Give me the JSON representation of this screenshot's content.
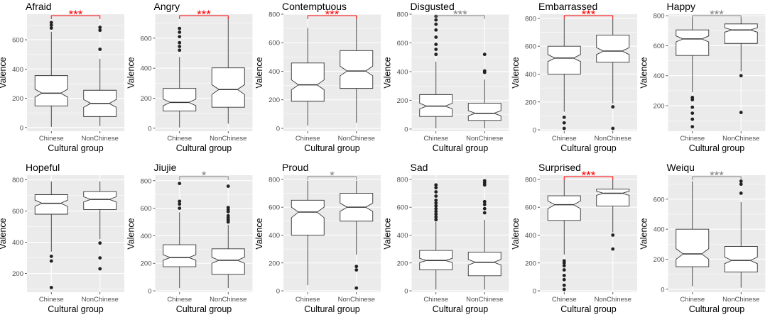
{
  "chart_data": [
    {
      "type": "boxplot",
      "title": "Afraid",
      "xlabel": "Cultural group",
      "ylabel": "Valence",
      "categories": [
        "Chinese",
        "NonChinese"
      ],
      "yticks": [
        0,
        200,
        400,
        600
      ],
      "ylim": [
        -25,
        775
      ],
      "significance": {
        "label": "***",
        "color": "#ff0000"
      },
      "boxes": [
        {
          "group": "Chinese",
          "whisker_low": 5,
          "q1": 148,
          "median": 235,
          "q3": 355,
          "whisker_high": 655,
          "notch_low": 208,
          "notch_high": 262,
          "outliers": [
            680,
            700,
            718
          ]
        },
        {
          "group": "NonChinese",
          "whisker_low": 10,
          "q1": 75,
          "median": 165,
          "q3": 255,
          "whisker_high": 470,
          "notch_low": 138,
          "notch_high": 192,
          "outliers": [
            535,
            665,
            685
          ]
        }
      ]
    },
    {
      "type": "boxplot",
      "title": "Angry",
      "xlabel": "Cultural group",
      "ylabel": "Valence",
      "categories": [
        "Chinese",
        "NonChinese"
      ],
      "yticks": [
        0,
        200,
        400,
        600
      ],
      "ylim": [
        -20,
        760
      ],
      "significance": {
        "label": "***",
        "color": "#ff0000"
      },
      "boxes": [
        {
          "group": "Chinese",
          "whisker_low": 5,
          "q1": 115,
          "median": 172,
          "q3": 265,
          "whisker_high": 475,
          "notch_low": 150,
          "notch_high": 194,
          "outliers": [
            520,
            545,
            570,
            610,
            640,
            665
          ]
        },
        {
          "group": "NonChinese",
          "whisker_low": 30,
          "q1": 140,
          "median": 258,
          "q3": 402,
          "whisker_high": 740,
          "notch_low": 225,
          "notch_high": 290,
          "outliers": []
        }
      ]
    },
    {
      "type": "boxplot",
      "title": "Contemptuous",
      "xlabel": "Cultural group",
      "ylabel": "Valence",
      "categories": [
        "Chinese",
        "NonChinese"
      ],
      "yticks": [
        0,
        200,
        400,
        600,
        800
      ],
      "ylim": [
        -20,
        800
      ],
      "significance": {
        "label": "***",
        "color": "#ff0000"
      },
      "boxes": [
        {
          "group": "Chinese",
          "whisker_low": 20,
          "q1": 190,
          "median": 305,
          "q3": 458,
          "whisker_high": 705,
          "notch_low": 270,
          "notch_high": 340,
          "outliers": []
        },
        {
          "group": "NonChinese",
          "whisker_low": 40,
          "q1": 280,
          "median": 402,
          "q3": 545,
          "whisker_high": 790,
          "notch_low": 368,
          "notch_high": 436,
          "outliers": []
        }
      ]
    },
    {
      "type": "boxplot",
      "title": "Disgusted",
      "xlabel": "Cultural group",
      "ylabel": "Valence",
      "categories": [
        "Chinese",
        "NonChinese"
      ],
      "yticks": [
        0,
        200,
        400,
        600,
        800
      ],
      "ylim": [
        -15,
        800
      ],
      "significance": {
        "label": "***",
        "color": "#808080"
      },
      "boxes": [
        {
          "group": "Chinese",
          "whisker_low": 5,
          "q1": 88,
          "median": 160,
          "q3": 240,
          "whisker_high": 470,
          "notch_low": 140,
          "notch_high": 180,
          "outliers": [
            520,
            555,
            590,
            640,
            690,
            730,
            760,
            785
          ]
        },
        {
          "group": "NonChinese",
          "whisker_low": 5,
          "q1": 60,
          "median": 110,
          "q3": 180,
          "whisker_high": 345,
          "notch_low": 92,
          "notch_high": 128,
          "outliers": [
            395,
            405,
            520
          ]
        }
      ]
    },
    {
      "type": "boxplot",
      "title": "Embarrassed",
      "xlabel": "Cultural group",
      "ylabel": "Valence",
      "categories": [
        "Chinese",
        "NonChinese"
      ],
      "yticks": [
        0,
        200,
        400,
        600,
        800
      ],
      "ylim": [
        -10,
        830
      ],
      "significance": {
        "label": "***",
        "color": "#ff0000"
      },
      "boxes": [
        {
          "group": "Chinese",
          "whisker_low": 130,
          "q1": 400,
          "median": 515,
          "q3": 600,
          "whisker_high": 800,
          "notch_low": 490,
          "notch_high": 540,
          "outliers": [
            10,
            50,
            90
          ]
        },
        {
          "group": "NonChinese",
          "whisker_low": 190,
          "q1": 485,
          "median": 565,
          "q3": 680,
          "whisker_high": 800,
          "notch_low": 540,
          "notch_high": 590,
          "outliers": [
            10,
            165
          ]
        }
      ]
    },
    {
      "type": "boxplot",
      "title": "Happy",
      "xlabel": "Cultural group",
      "ylabel": "Valence",
      "categories": [
        "Chinese",
        "NonChinese"
      ],
      "yticks": [
        200,
        400,
        600,
        800
      ],
      "ylim": [
        30,
        810
      ],
      "significance": {
        "label": "***",
        "color": "#808080"
      },
      "boxes": [
        {
          "group": "Chinese",
          "whisker_low": 290,
          "q1": 535,
          "median": 645,
          "q3": 705,
          "whisker_high": 790,
          "notch_low": 625,
          "notch_high": 665,
          "outliers": [
            60,
            110,
            150,
            190,
            240,
            255
          ]
        },
        {
          "group": "NonChinese",
          "whisker_low": 430,
          "q1": 615,
          "median": 705,
          "q3": 745,
          "whisker_high": 790,
          "notch_low": 690,
          "notch_high": 720,
          "outliers": [
            155,
            400
          ]
        }
      ]
    },
    {
      "type": "boxplot",
      "title": "Hopeful",
      "xlabel": "Cultural group",
      "ylabel": "Valence",
      "categories": [
        "Chinese",
        "NonChinese"
      ],
      "yticks": [
        200,
        400,
        600,
        800
      ],
      "ylim": [
        80,
        830
      ],
      "significance": null,
      "boxes": [
        {
          "group": "Chinese",
          "whisker_low": 340,
          "q1": 580,
          "median": 650,
          "q3": 705,
          "whisker_high": 790,
          "notch_low": 630,
          "notch_high": 670,
          "outliers": [
            110,
            280,
            310
          ]
        },
        {
          "group": "NonChinese",
          "whisker_low": 420,
          "q1": 610,
          "median": 675,
          "q3": 725,
          "whisker_high": 790,
          "notch_low": 658,
          "notch_high": 692,
          "outliers": [
            230,
            300,
            395
          ]
        }
      ]
    },
    {
      "type": "boxplot",
      "title": "Jiujie",
      "xlabel": "Cultural group",
      "ylabel": "Valence",
      "categories": [
        "Chinese",
        "NonChinese"
      ],
      "yticks": [
        0,
        200,
        400,
        600,
        800
      ],
      "ylim": [
        -10,
        840
      ],
      "significance": {
        "label": "*",
        "color": "#808080"
      },
      "boxes": [
        {
          "group": "Chinese",
          "whisker_low": 20,
          "q1": 175,
          "median": 242,
          "q3": 335,
          "whisker_high": 570,
          "notch_low": 222,
          "notch_high": 262,
          "outliers": [
            600,
            630,
            650,
            780
          ]
        },
        {
          "group": "NonChinese",
          "whisker_low": 20,
          "q1": 120,
          "median": 222,
          "q3": 305,
          "whisker_high": 480,
          "notch_low": 200,
          "notch_high": 244,
          "outliers": [
            500,
            515,
            530,
            545,
            575,
            590,
            605,
            760
          ]
        }
      ]
    },
    {
      "type": "boxplot",
      "title": "Proud",
      "xlabel": "Cultural group",
      "ylabel": "Valence",
      "categories": [
        "Chinese",
        "NonChinese"
      ],
      "yticks": [
        0,
        200,
        400,
        600,
        800
      ],
      "ylim": [
        -10,
        830
      ],
      "significance": {
        "label": "*",
        "color": "#808080"
      },
      "boxes": [
        {
          "group": "Chinese",
          "whisker_low": 40,
          "q1": 400,
          "median": 565,
          "q3": 650,
          "whisker_high": 790,
          "notch_low": 525,
          "notch_high": 600,
          "outliers": []
        },
        {
          "group": "NonChinese",
          "whisker_low": 260,
          "q1": 500,
          "median": 600,
          "q3": 700,
          "whisker_high": 790,
          "notch_low": 570,
          "notch_high": 630,
          "outliers": [
            20,
            150,
            175
          ]
        }
      ]
    },
    {
      "type": "boxplot",
      "title": "Sad",
      "xlabel": "Cultural group",
      "ylabel": "Valence",
      "categories": [
        "Chinese",
        "NonChinese"
      ],
      "yticks": [
        0,
        200,
        400,
        600,
        800
      ],
      "ylim": [
        -10,
        830
      ],
      "significance": null,
      "boxes": [
        {
          "group": "Chinese",
          "whisker_low": 10,
          "q1": 150,
          "median": 218,
          "q3": 290,
          "whisker_high": 495,
          "notch_low": 203,
          "notch_high": 233,
          "outliers": [
            510,
            530,
            550,
            570,
            590,
            610,
            630,
            650,
            680,
            710,
            740,
            760
          ]
        },
        {
          "group": "NonChinese",
          "whisker_low": 10,
          "q1": 108,
          "median": 205,
          "q3": 278,
          "whisker_high": 510,
          "notch_low": 185,
          "notch_high": 225,
          "outliers": [
            560,
            590,
            620,
            640,
            760,
            775,
            790
          ]
        }
      ]
    },
    {
      "type": "boxplot",
      "title": "Surprised",
      "xlabel": "Cultural group",
      "ylabel": "Valence",
      "categories": [
        "Chinese",
        "NonChinese"
      ],
      "yticks": [
        0,
        200,
        400,
        600,
        800
      ],
      "ylim": [
        -10,
        830
      ],
      "significance": {
        "label": "***",
        "color": "#ff0000"
      },
      "boxes": [
        {
          "group": "Chinese",
          "whisker_low": 260,
          "q1": 505,
          "median": 618,
          "q3": 682,
          "whisker_high": 800,
          "notch_low": 590,
          "notch_high": 645,
          "outliers": [
            10,
            40,
            80,
            110,
            150,
            180,
            200,
            215
          ]
        },
        {
          "group": "NonChinese",
          "whisker_low": 420,
          "q1": 608,
          "median": 700,
          "q3": 730,
          "whisker_high": 800,
          "notch_low": 685,
          "notch_high": 715,
          "outliers": [
            300,
            400
          ]
        }
      ]
    },
    {
      "type": "boxplot",
      "title": "Weiqu",
      "xlabel": "Cultural group",
      "ylabel": "Valence",
      "categories": [
        "Chinese",
        "NonChinese"
      ],
      "yticks": [
        0,
        200,
        400,
        600
      ],
      "ylim": [
        -20,
        760
      ],
      "significance": {
        "label": "***",
        "color": "#808080"
      },
      "boxes": [
        {
          "group": "Chinese",
          "whisker_low": 20,
          "q1": 150,
          "median": 235,
          "q3": 400,
          "whisker_high": 720,
          "notch_low": 200,
          "notch_high": 270,
          "outliers": []
        },
        {
          "group": "NonChinese",
          "whisker_low": 10,
          "q1": 115,
          "median": 192,
          "q3": 285,
          "whisker_high": 580,
          "notch_low": 170,
          "notch_high": 214,
          "outliers": [
            640,
            700,
            720
          ]
        }
      ]
    }
  ]
}
